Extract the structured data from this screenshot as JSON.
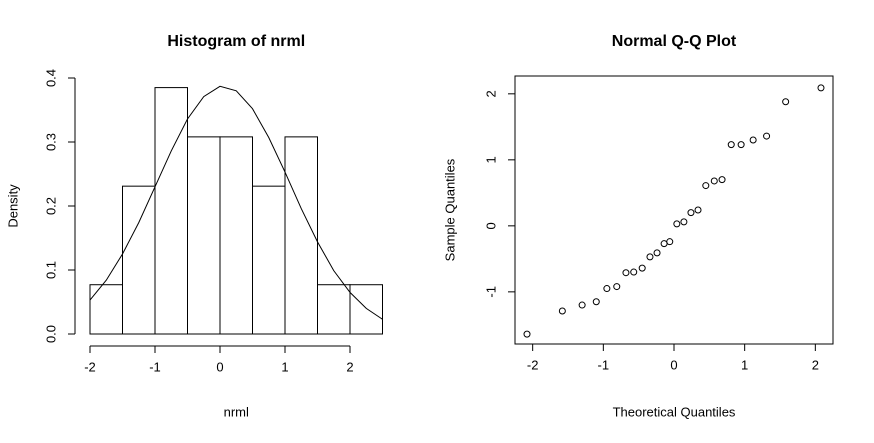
{
  "chart_data": [
    {
      "type": "histogram",
      "title": "Histogram of nrml",
      "xlabel": "nrml",
      "ylabel": "Density",
      "bins": [
        -2,
        -1.5,
        -1,
        -0.5,
        0,
        0.5,
        1,
        1.5,
        2,
        2.5
      ],
      "values": [
        0.077,
        0.231,
        0.385,
        0.308,
        0.308,
        0.231,
        0.308,
        0.077,
        0.077
      ],
      "color": "#ffffff",
      "curve": {
        "x": [
          -2,
          -1.75,
          -1.5,
          -1.25,
          -1,
          -0.75,
          -0.5,
          -0.25,
          0,
          0.25,
          0.5,
          0.75,
          1,
          1.25,
          1.5,
          1.75,
          2,
          2.25,
          2.5
        ],
        "values": [
          0.053,
          0.084,
          0.125,
          0.174,
          0.23,
          0.286,
          0.336,
          0.371,
          0.387,
          0.38,
          0.352,
          0.307,
          0.253,
          0.196,
          0.144,
          0.099,
          0.065,
          0.04,
          0.023
        ]
      },
      "xlim": [
        -2,
        2.5
      ],
      "ylim": [
        0,
        0.4
      ],
      "xticks": [
        -2,
        -1,
        0,
        1,
        2
      ],
      "yticks": [
        {
          "value": 0,
          "label": "0.0"
        },
        0.1,
        0.2,
        0.3,
        0.4
      ]
    },
    {
      "type": "scatter",
      "title": "Normal Q-Q Plot",
      "xlabel": "Theoretical Quantiles",
      "ylabel": "Sample Quantiles",
      "x": [
        -2.08,
        -1.58,
        -1.3,
        -1.1,
        -0.95,
        -0.81,
        -0.68,
        -0.57,
        -0.45,
        -0.34,
        -0.24,
        -0.14,
        -0.06,
        0.04,
        0.14,
        0.24,
        0.34,
        0.45,
        0.57,
        0.68,
        0.81,
        0.95,
        1.12,
        1.31,
        1.58,
        2.08
      ],
      "values": [
        -1.64,
        -1.29,
        -1.2,
        -1.15,
        -0.95,
        -0.92,
        -0.71,
        -0.7,
        -0.64,
        -0.47,
        -0.41,
        -0.27,
        -0.24,
        0.03,
        0.06,
        0.2,
        0.24,
        0.61,
        0.68,
        0.7,
        1.23,
        1.23,
        1.3,
        1.36,
        1.88,
        2.09
      ],
      "xlim": [
        -2.25,
        2.25
      ],
      "ylim": [
        -1.79,
        2.27
      ],
      "xticks": [
        -2,
        -1,
        0,
        1,
        2
      ],
      "yticks": [
        -1,
        0,
        1,
        2
      ]
    }
  ]
}
